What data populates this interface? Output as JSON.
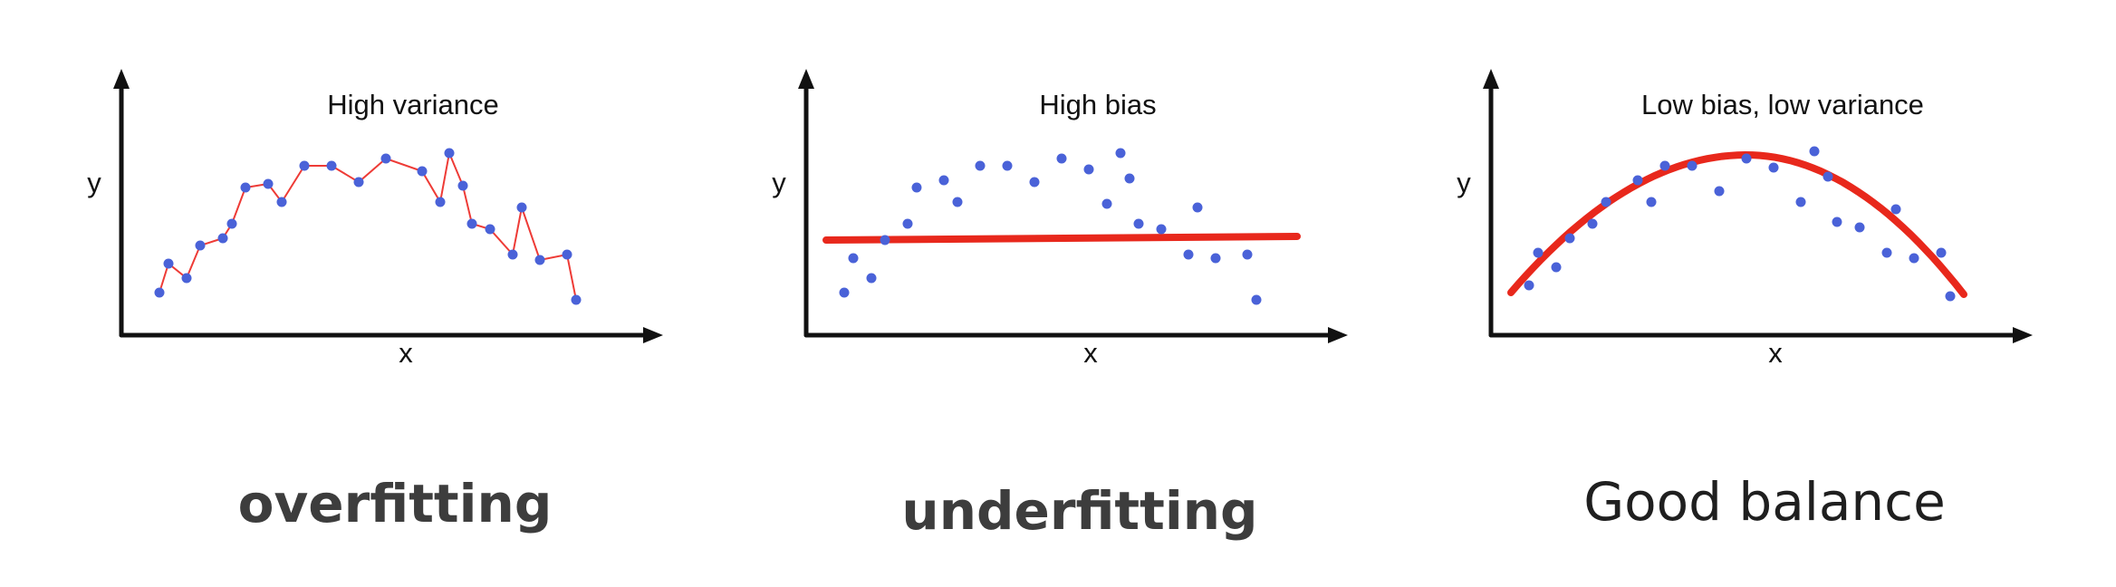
{
  "colors": {
    "axis": "#111111",
    "point": "#4a62d8",
    "fit": "#e8281c",
    "overfit": "#ee3b36"
  },
  "chart_data": [
    {
      "type": "scatter",
      "title": "High variance",
      "xlabel": "x",
      "ylabel": "y",
      "grid": false,
      "xlim": [
        0,
        1
      ],
      "ylim": [
        0,
        1
      ],
      "fit": "interpolating",
      "caption": "overfitting",
      "points": [
        [
          0.04,
          0.16
        ],
        [
          0.06,
          0.32
        ],
        [
          0.1,
          0.24
        ],
        [
          0.13,
          0.42
        ],
        [
          0.18,
          0.46
        ],
        [
          0.2,
          0.54
        ],
        [
          0.23,
          0.74
        ],
        [
          0.28,
          0.76
        ],
        [
          0.31,
          0.66
        ],
        [
          0.36,
          0.86
        ],
        [
          0.42,
          0.86
        ],
        [
          0.48,
          0.77
        ],
        [
          0.54,
          0.9
        ],
        [
          0.62,
          0.83
        ],
        [
          0.66,
          0.66
        ],
        [
          0.68,
          0.93
        ],
        [
          0.71,
          0.75
        ],
        [
          0.73,
          0.54
        ],
        [
          0.77,
          0.51
        ],
        [
          0.82,
          0.37
        ],
        [
          0.84,
          0.63
        ],
        [
          0.88,
          0.34
        ],
        [
          0.94,
          0.37
        ],
        [
          0.96,
          0.12
        ]
      ]
    },
    {
      "type": "scatter",
      "title": "High bias",
      "xlabel": "x",
      "ylabel": "y",
      "grid": false,
      "xlim": [
        0,
        1
      ],
      "ylim": [
        0,
        1
      ],
      "fit": "linear",
      "fit_line": {
        "y_start": 0.45,
        "y_end": 0.47
      },
      "caption": "underfitting",
      "points": [
        [
          0.04,
          0.16
        ],
        [
          0.06,
          0.35
        ],
        [
          0.1,
          0.24
        ],
        [
          0.13,
          0.45
        ],
        [
          0.18,
          0.54
        ],
        [
          0.2,
          0.74
        ],
        [
          0.26,
          0.78
        ],
        [
          0.29,
          0.66
        ],
        [
          0.34,
          0.86
        ],
        [
          0.4,
          0.86
        ],
        [
          0.46,
          0.77
        ],
        [
          0.52,
          0.9
        ],
        [
          0.58,
          0.84
        ],
        [
          0.62,
          0.65
        ],
        [
          0.65,
          0.93
        ],
        [
          0.67,
          0.79
        ],
        [
          0.69,
          0.54
        ],
        [
          0.74,
          0.51
        ],
        [
          0.8,
          0.37
        ],
        [
          0.82,
          0.63
        ],
        [
          0.86,
          0.35
        ],
        [
          0.93,
          0.37
        ],
        [
          0.95,
          0.12
        ]
      ]
    },
    {
      "type": "scatter",
      "title": "Low bias, low variance",
      "xlabel": "x",
      "ylabel": "y",
      "grid": false,
      "xlim": [
        0,
        1
      ],
      "ylim": [
        0,
        1
      ],
      "fit": "quadratic",
      "fit_curve": {
        "y_start": 0.16,
        "peak_x": 0.52,
        "peak_y": 0.92,
        "y_end": 0.15
      },
      "caption": "Good balance",
      "points": [
        [
          0.04,
          0.2
        ],
        [
          0.06,
          0.38
        ],
        [
          0.1,
          0.3
        ],
        [
          0.13,
          0.46
        ],
        [
          0.18,
          0.54
        ],
        [
          0.21,
          0.66
        ],
        [
          0.28,
          0.78
        ],
        [
          0.31,
          0.66
        ],
        [
          0.34,
          0.86
        ],
        [
          0.4,
          0.86
        ],
        [
          0.46,
          0.72
        ],
        [
          0.52,
          0.9
        ],
        [
          0.58,
          0.85
        ],
        [
          0.64,
          0.66
        ],
        [
          0.67,
          0.94
        ],
        [
          0.7,
          0.8
        ],
        [
          0.72,
          0.55
        ],
        [
          0.77,
          0.52
        ],
        [
          0.83,
          0.38
        ],
        [
          0.85,
          0.62
        ],
        [
          0.89,
          0.35
        ],
        [
          0.95,
          0.38
        ],
        [
          0.97,
          0.14
        ]
      ]
    }
  ]
}
